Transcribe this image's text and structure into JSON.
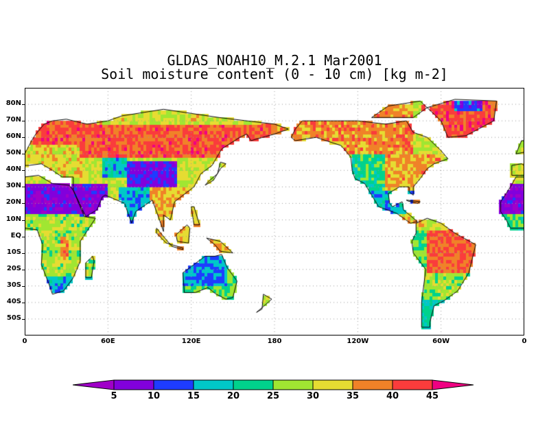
{
  "title": {
    "line1": "GLDAS_NOAH10_M.2.1 Mar2001",
    "line2": "Soil moisture content (0 - 10 cm) [kg m-2]"
  },
  "axes": {
    "lat_labels": [
      "80N",
      "70N",
      "60N",
      "50N",
      "40N",
      "30N",
      "20N",
      "10N",
      "EQ",
      "10S",
      "20S",
      "30S",
      "40S",
      "50S"
    ],
    "lat_values": [
      80,
      70,
      60,
      50,
      40,
      30,
      20,
      10,
      0,
      -10,
      -20,
      -30,
      -40,
      -50
    ],
    "lon_labels": [
      "0",
      "60E",
      "120E",
      "180",
      "120W",
      "60W",
      "0"
    ],
    "lon_values": [
      0,
      60,
      120,
      180,
      240,
      300,
      360
    ],
    "lat_range": [
      -60,
      90
    ],
    "lon_range": [
      0,
      360
    ]
  },
  "colorbar": {
    "levels": [
      "5",
      "10",
      "15",
      "20",
      "25",
      "30",
      "35",
      "40",
      "45"
    ],
    "colors": [
      "#a000c8",
      "#8200dc",
      "#1e3cff",
      "#00c8c8",
      "#00d28c",
      "#a0e632",
      "#e6dc32",
      "#f08228",
      "#fa3c3c",
      "#f00082"
    ]
  }
}
